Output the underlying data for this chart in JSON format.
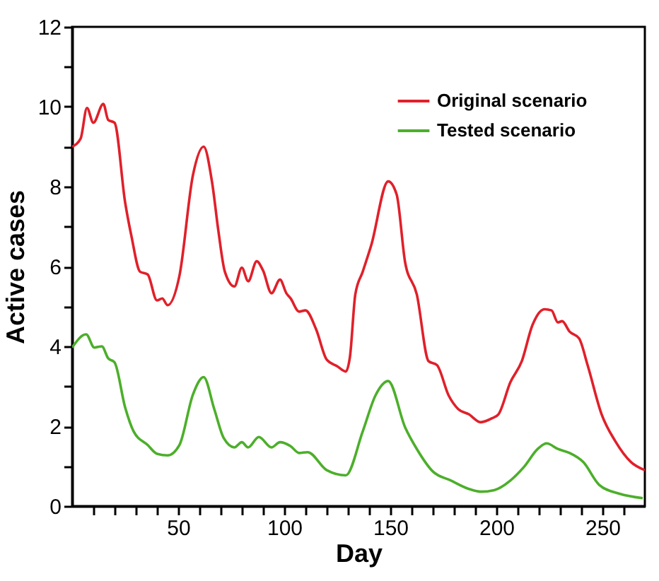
{
  "chart_data": {
    "type": "line",
    "xlabel": "Day",
    "ylabel": "Active cases",
    "xlim": [
      0,
      270
    ],
    "ylim": [
      0,
      12
    ],
    "xticks": [
      {
        "value": 10,
        "label": null
      },
      {
        "value": 20,
        "label": null
      },
      {
        "value": 30,
        "label": null
      },
      {
        "value": 40,
        "label": null
      },
      50,
      {
        "value": 60,
        "label": null
      },
      {
        "value": 70,
        "label": null
      },
      {
        "value": 80,
        "label": null
      },
      {
        "value": 90,
        "label": null
      },
      100,
      {
        "value": 110,
        "label": null
      },
      {
        "value": 120,
        "label": null
      },
      {
        "value": 130,
        "label": null
      },
      {
        "value": 140,
        "label": null
      },
      150,
      {
        "value": 160,
        "label": null
      },
      {
        "value": 170,
        "label": null
      },
      {
        "value": 180,
        "label": null
      },
      {
        "value": 190,
        "label": null
      },
      200,
      {
        "value": 210,
        "label": null
      },
      {
        "value": 220,
        "label": null
      },
      {
        "value": 230,
        "label": null
      },
      {
        "value": 240,
        "label": null
      },
      250,
      {
        "value": 260,
        "label": null
      }
    ],
    "yticks": [
      0,
      {
        "value": 1,
        "label": null
      },
      2,
      {
        "value": 3,
        "label": null
      },
      4,
      {
        "value": 5,
        "label": null
      },
      6,
      {
        "value": 7,
        "label": null
      },
      8,
      {
        "value": 9,
        "label": null
      },
      10,
      {
        "value": 11,
        "label": null
      },
      12
    ],
    "grid": false,
    "legend": "top right",
    "marker": "none",
    "line_style": "solid",
    "series": [
      {
        "name": "Original scenario",
        "color": "#e0202a",
        "x": [
          0,
          4,
          7,
          10,
          14.7,
          17,
          20,
          25,
          28,
          32,
          35.6,
          40,
          42.5,
          45,
          50.6,
          57,
          62,
          66,
          69,
          72,
          76.5,
          80,
          83,
          87,
          90,
          94,
          98,
          101,
          103,
          107,
          110,
          115,
          120,
          125,
          129,
          131,
          133.5,
          137,
          141,
          149,
          153,
          157,
          162.5,
          168,
          172,
          177.5,
          182,
          187,
          192.6,
          198,
          201,
          206.6,
          212,
          217,
          222.7,
          226,
          229,
          231,
          234.5,
          239,
          243,
          249.6,
          256,
          263.5,
          270
        ],
        "values": [
          9.0,
          9.2,
          9.97,
          9.6,
          10.07,
          9.67,
          9.6,
          7.6,
          6.75,
          5.87,
          5.8,
          5.15,
          5.2,
          5.03,
          5.77,
          8.3,
          9.0,
          8.1,
          6.87,
          5.87,
          5.5,
          5.97,
          5.63,
          6.13,
          5.9,
          5.33,
          5.67,
          5.33,
          5.2,
          4.87,
          4.9,
          4.43,
          3.67,
          3.5,
          3.37,
          3.75,
          5.3,
          5.87,
          6.53,
          8.13,
          7.8,
          6.1,
          5.3,
          3.63,
          3.53,
          2.77,
          2.43,
          2.3,
          2.1,
          2.2,
          2.3,
          3.1,
          3.63,
          4.53,
          4.93,
          4.9,
          4.6,
          4.63,
          4.37,
          4.2,
          3.53,
          2.3,
          1.63,
          1.1,
          0.9
        ]
      },
      {
        "name": "Tested scenario",
        "color": "#4caf2a",
        "x": [
          0,
          6.6,
          10.5,
          14,
          17,
          20,
          25,
          29,
          35.6,
          40,
          45,
          50.6,
          57,
          62,
          67,
          71.5,
          76.5,
          80,
          83,
          88,
          94,
          98,
          103,
          107,
          111,
          120,
          129,
          137,
          143,
          149,
          157,
          162.5,
          170,
          178.6,
          187,
          192.6,
          199,
          206.6,
          213,
          219.5,
          223.7,
          229,
          234.5,
          241,
          248.5,
          258,
          269
        ],
        "values": [
          3.97,
          4.3,
          3.97,
          4.0,
          3.7,
          3.6,
          2.47,
          1.87,
          1.53,
          1.31,
          1.27,
          1.53,
          2.8,
          3.23,
          2.43,
          1.7,
          1.47,
          1.6,
          1.47,
          1.73,
          1.47,
          1.6,
          1.5,
          1.33,
          1.35,
          0.9,
          0.77,
          1.87,
          2.77,
          3.13,
          1.97,
          1.43,
          0.87,
          0.64,
          0.43,
          0.36,
          0.4,
          0.64,
          0.98,
          1.43,
          1.57,
          1.43,
          1.33,
          1.1,
          0.53,
          0.31,
          0.2
        ]
      }
    ]
  }
}
